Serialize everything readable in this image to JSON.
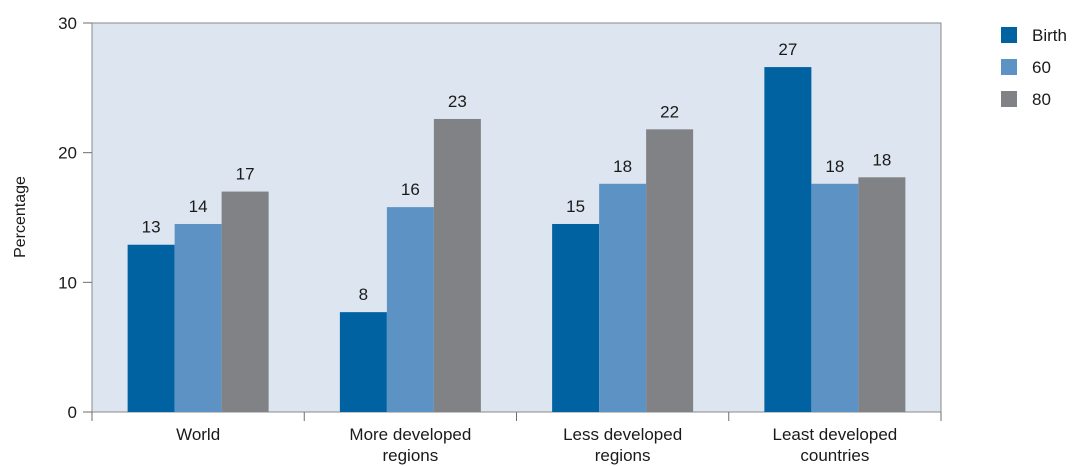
{
  "chart_data": {
    "type": "bar",
    "title": "",
    "xlabel": "",
    "ylabel": "Percentage",
    "ylim": [
      0,
      30
    ],
    "yticks": [
      "0",
      "10",
      "20",
      "30"
    ],
    "categories": [
      [
        "World"
      ],
      [
        "More developed",
        "regions"
      ],
      [
        "Less developed",
        "regions"
      ],
      [
        "Least developed",
        "countries"
      ]
    ],
    "series": [
      {
        "name": "Birth",
        "color": "#0062a0",
        "values": [
          12.9,
          7.7,
          14.5,
          26.6
        ],
        "labels": [
          "13",
          "8",
          "15",
          "27"
        ]
      },
      {
        "name": "60",
        "color": "#5d93c4",
        "values": [
          14.5,
          15.8,
          17.6,
          17.6
        ],
        "labels": [
          "14",
          "16",
          "18",
          "18"
        ]
      },
      {
        "name": "80",
        "color": "#818285",
        "values": [
          17.0,
          22.6,
          21.8,
          18.1
        ],
        "labels": [
          "17",
          "23",
          "22",
          "18"
        ]
      }
    ],
    "grid": false,
    "legend_position": "top-right",
    "plot_background": "#dde6f0"
  }
}
